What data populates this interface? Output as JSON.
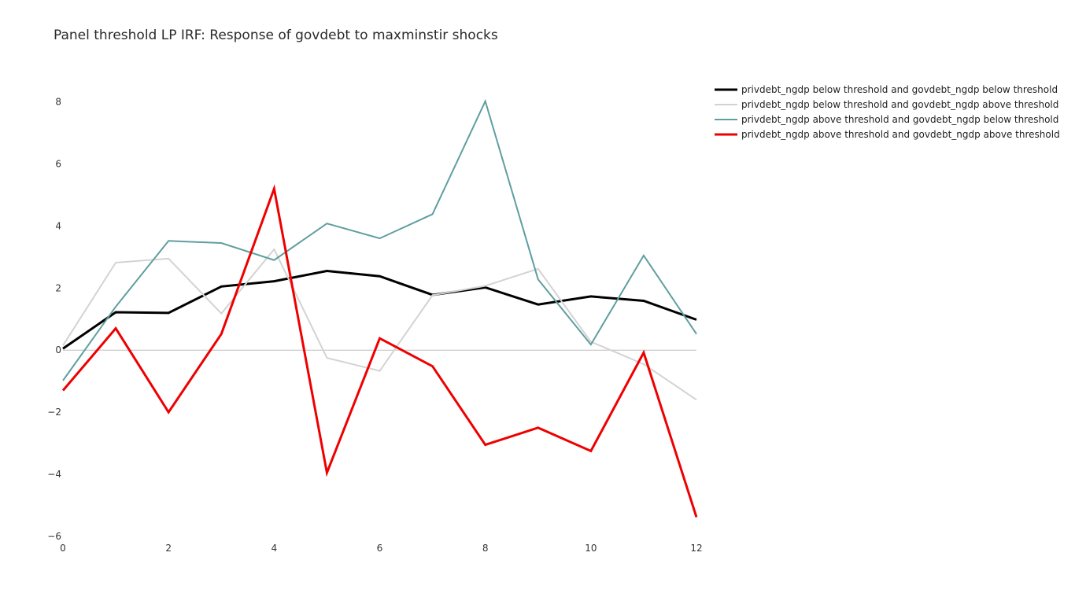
{
  "chart_data": {
    "type": "line",
    "title": "Panel threshold LP IRF: Response of govdebt to maxminstir shocks",
    "xlabel": "",
    "ylabel": "",
    "x": [
      0,
      1,
      2,
      3,
      4,
      5,
      6,
      7,
      8,
      9,
      10,
      11,
      12
    ],
    "xlim": [
      0,
      12
    ],
    "ylim": [
      -6,
      9
    ],
    "xticks": [
      0,
      2,
      4,
      6,
      8,
      10,
      12
    ],
    "yticks": [
      -6,
      -4,
      -2,
      0,
      2,
      4,
      6,
      8
    ],
    "ytick_labels": [
      "−6",
      "−4",
      "−2",
      "0",
      "2",
      "4",
      "6",
      "8"
    ],
    "grid": false,
    "zero_line": true,
    "legend_position": "top-right",
    "series": [
      {
        "name": "privdebt_ngdp below threshold and govdebt_ngdp below threshold",
        "color": "#000000",
        "values": [
          0.05,
          1.22,
          1.2,
          2.05,
          2.22,
          2.55,
          2.38,
          1.78,
          2.02,
          1.47,
          1.73,
          1.59,
          0.98
        ]
      },
      {
        "name": "privdebt_ngdp below threshold and govdebt_ngdp above threshold",
        "color": "#d3d3d3",
        "values": [
          0.15,
          2.82,
          2.95,
          1.18,
          3.25,
          -0.25,
          -0.67,
          1.77,
          2.07,
          2.62,
          0.27,
          -0.45,
          -1.6
        ]
      },
      {
        "name": "privdebt_ngdp above threshold and govdebt_ngdp below threshold",
        "color": "#5f9ea0",
        "values": [
          -0.98,
          1.4,
          3.52,
          3.45,
          2.9,
          4.08,
          3.6,
          4.38,
          8.02,
          2.28,
          0.18,
          3.05,
          0.52
        ]
      },
      {
        "name": "privdebt_ngdp above threshold and govdebt_ngdp above threshold",
        "color": "#ee0000",
        "values": [
          -1.3,
          0.7,
          -2.0,
          0.52,
          5.2,
          -3.95,
          0.38,
          -0.52,
          -3.05,
          -2.5,
          -3.25,
          -0.08,
          -5.38
        ]
      }
    ]
  }
}
